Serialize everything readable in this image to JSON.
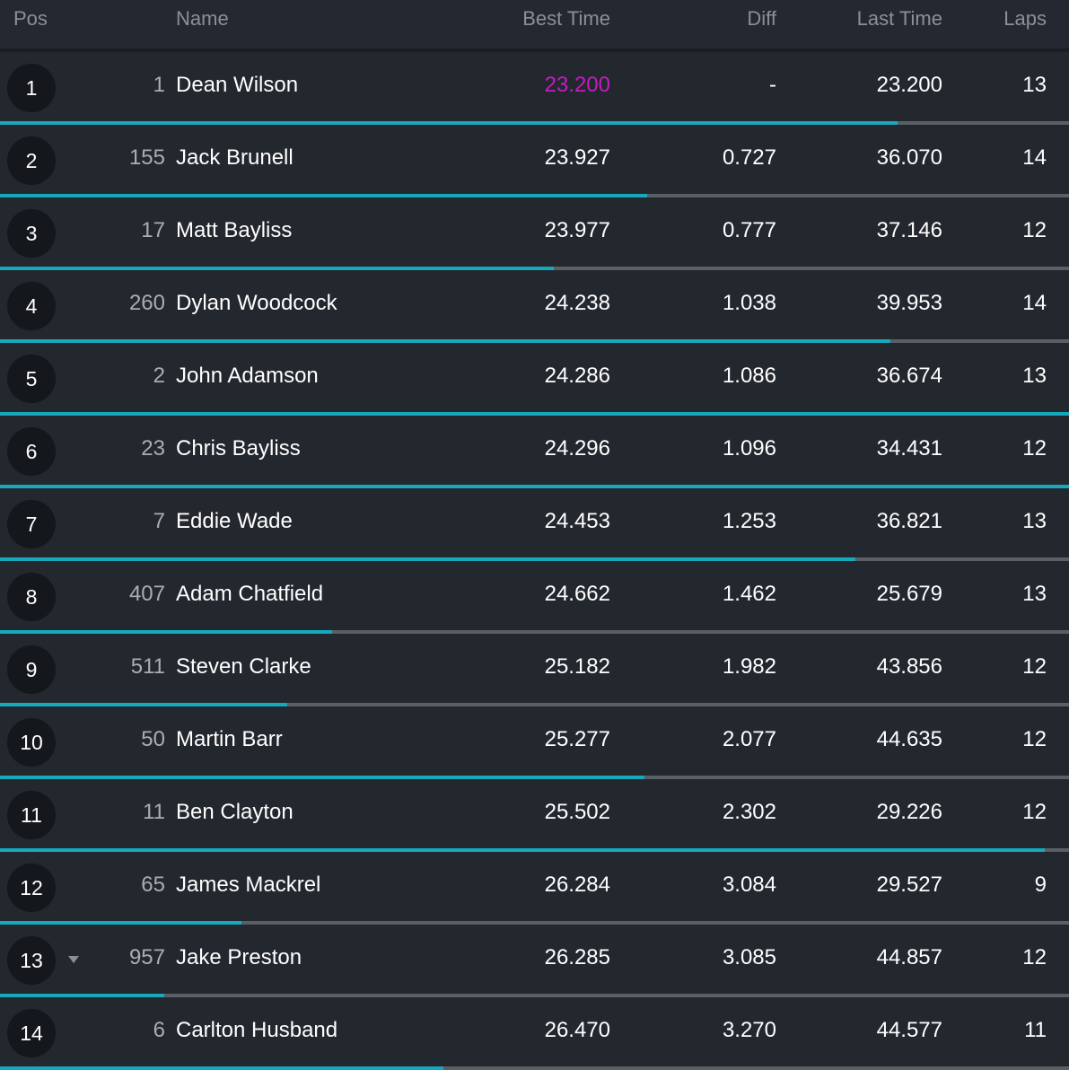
{
  "headers": {
    "pos": "Pos",
    "name": "Name",
    "best_time": "Best Time",
    "diff": "Diff",
    "last_time": "Last Time",
    "laps": "Laps"
  },
  "colors": {
    "progress_fill": "#17a8bd",
    "progress_track": "#5a5e65",
    "fastest_lap": "#c41cc1"
  },
  "rows": [
    {
      "pos": "1",
      "number": "1",
      "name": "Dean Wilson",
      "best": "23.200",
      "diff": "-",
      "last": "23.200",
      "laps": "13",
      "fastest": true,
      "progress": 0.84
    },
    {
      "pos": "2",
      "number": "155",
      "name": "Jack Brunell",
      "best": "23.927",
      "diff": "0.727",
      "last": "36.070",
      "laps": "14",
      "fastest": false,
      "progress": 0.605
    },
    {
      "pos": "3",
      "number": "17",
      "name": "Matt Bayliss",
      "best": "23.977",
      "diff": "0.777",
      "last": "37.146",
      "laps": "12",
      "fastest": false,
      "progress": 0.518
    },
    {
      "pos": "4",
      "number": "260",
      "name": "Dylan Woodcock",
      "best": "24.238",
      "diff": "1.038",
      "last": "39.953",
      "laps": "14",
      "fastest": false,
      "progress": 0.833
    },
    {
      "pos": "5",
      "number": "2",
      "name": "John Adamson",
      "best": "24.286",
      "diff": "1.086",
      "last": "36.674",
      "laps": "13",
      "fastest": false,
      "progress": 1.0
    },
    {
      "pos": "6",
      "number": "23",
      "name": "Chris Bayliss",
      "best": "24.296",
      "diff": "1.096",
      "last": "34.431",
      "laps": "12",
      "fastest": false,
      "progress": 1.0
    },
    {
      "pos": "7",
      "number": "7",
      "name": "Eddie Wade",
      "best": "24.453",
      "diff": "1.253",
      "last": "36.821",
      "laps": "13",
      "fastest": false,
      "progress": 0.8
    },
    {
      "pos": "8",
      "number": "407",
      "name": "Adam Chatfield",
      "best": "24.662",
      "diff": "1.462",
      "last": "25.679",
      "laps": "13",
      "fastest": false,
      "progress": 0.311
    },
    {
      "pos": "9",
      "number": "511",
      "name": "Steven Clarke",
      "best": "25.182",
      "diff": "1.982",
      "last": "43.856",
      "laps": "12",
      "fastest": false,
      "progress": 0.269
    },
    {
      "pos": "10",
      "number": "50",
      "name": "Martin Barr",
      "best": "25.277",
      "diff": "2.077",
      "last": "44.635",
      "laps": "12",
      "fastest": false,
      "progress": 0.603
    },
    {
      "pos": "11",
      "number": "11",
      "name": "Ben Clayton",
      "best": "25.502",
      "diff": "2.302",
      "last": "29.226",
      "laps": "12",
      "fastest": false,
      "progress": 0.977
    },
    {
      "pos": "12",
      "number": "65",
      "name": "James Mackrel",
      "best": "26.284",
      "diff": "3.084",
      "last": "29.527",
      "laps": "9",
      "fastest": false,
      "progress": 0.226
    },
    {
      "pos": "13",
      "number": "957",
      "name": "Jake Preston",
      "best": "26.285",
      "diff": "3.085",
      "last": "44.857",
      "laps": "12",
      "fastest": false,
      "progress": 0.154,
      "position_change": "down"
    },
    {
      "pos": "14",
      "number": "6",
      "name": "Carlton Husband",
      "best": "26.470",
      "diff": "3.270",
      "last": "44.577",
      "laps": "11",
      "fastest": false,
      "progress": 0.415
    }
  ]
}
